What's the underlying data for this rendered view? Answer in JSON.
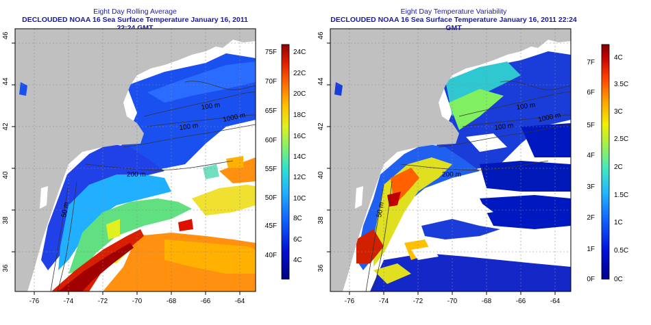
{
  "left_panel": {
    "title": "Eight Day Rolling Average",
    "subtitle": "DECLOUDED NOAA 16 Sea Surface Temperature January 16, 2011 22:24 GMT",
    "colorbar": {
      "f_labels": [
        "75F",
        "70F",
        "65F",
        "60F",
        "55F",
        "50F",
        "45F",
        "40F"
      ],
      "c_labels": [
        "24C",
        "22C",
        "20C",
        "18C",
        "16C",
        "14C",
        "12C",
        "10C",
        "8C",
        "6C",
        "4C"
      ]
    },
    "contours": [
      "100 m",
      "1000 m",
      "100 m",
      "200 m",
      "50 m",
      "200 m"
    ]
  },
  "right_panel": {
    "title": "Eight Day Temperature Variability",
    "subtitle": "DECLOUDED NOAA 16 Sea Surface Temperature January 16, 2011 22:24 GMT",
    "colorbar": {
      "f_labels": [
        "7F",
        "6F",
        "5F",
        "4F",
        "3F",
        "2F",
        "1F",
        "0F"
      ],
      "c_labels": [
        "4C",
        "3.5C",
        "3C",
        "2.5C",
        "2C",
        "1.5C",
        "1C",
        "0.5C",
        "0C"
      ]
    },
    "contours": [
      "100 m",
      "1000 m",
      "100 m",
      "200 m",
      "50 m"
    ]
  },
  "axes": {
    "lon_labels": [
      "-76",
      "-74",
      "-72",
      "-70",
      "-68",
      "-66",
      "-64"
    ],
    "lat_labels": [
      "46",
      "44",
      "42",
      "40",
      "38",
      "36"
    ]
  },
  "colors": {
    "title": "#1a1aa8",
    "land": "#c0c0c0",
    "water_no_data": "#ffffff"
  }
}
